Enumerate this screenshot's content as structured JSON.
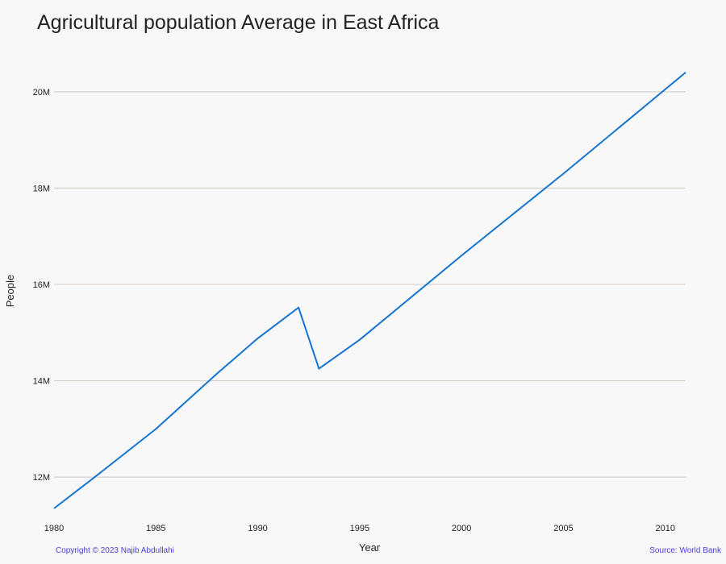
{
  "chart_data": {
    "type": "line",
    "title": "Agricultural population Average in East Africa",
    "xlabel": "Year",
    "ylabel": "People",
    "xlim": [
      1980,
      2011
    ],
    "ylim": [
      11.3,
      20.9
    ],
    "x_ticks": [
      1980,
      1985,
      1990,
      1995,
      2000,
      2005,
      2010
    ],
    "y_ticks": [
      12,
      14,
      16,
      18,
      20
    ],
    "y_tick_labels": [
      "12M",
      "14M",
      "16M",
      "18M",
      "20M"
    ],
    "grid": true,
    "legend": "none",
    "series": [
      {
        "color": "#1473d1",
        "x": [
          1980,
          1982,
          1985,
          1988,
          1990,
          1992,
          1993,
          1995,
          1997,
          2000,
          2005,
          2008,
          2011
        ],
        "y": [
          11.35,
          12.0,
          13.0,
          14.15,
          14.88,
          15.52,
          14.25,
          14.85,
          15.55,
          16.6,
          18.3,
          19.35,
          20.4
        ]
      }
    ]
  },
  "footer": {
    "copyright": "Copyright © 2023 Najib Abdullahi",
    "source": "Source: World Bank"
  }
}
